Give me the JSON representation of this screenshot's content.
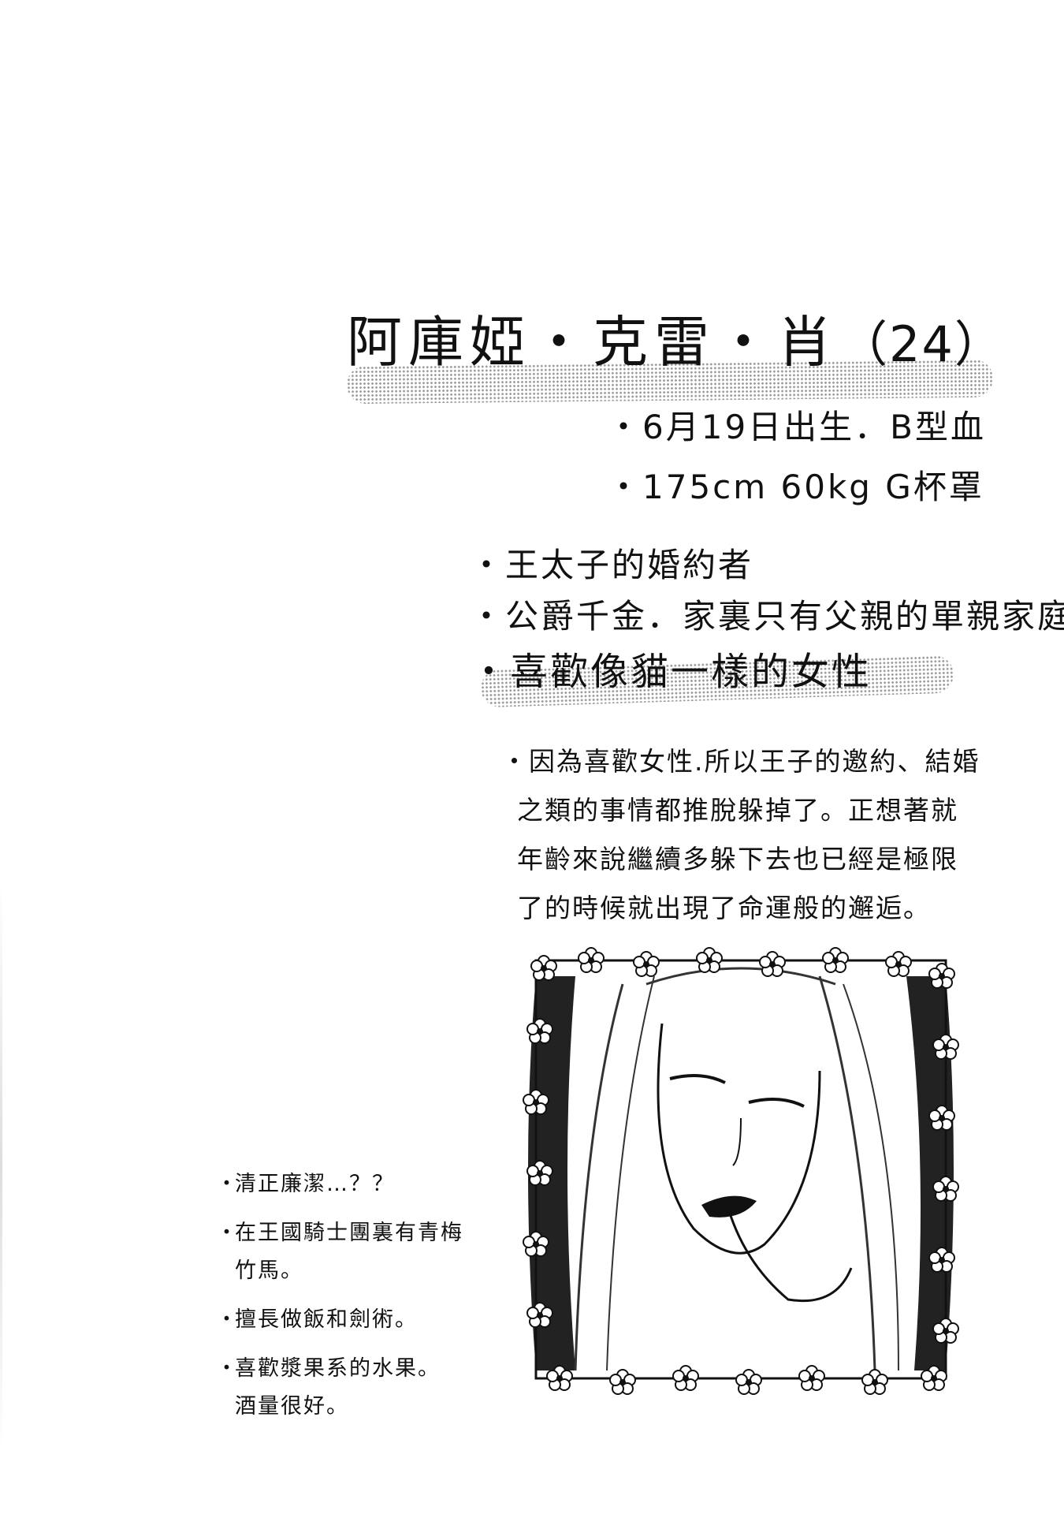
{
  "profile": {
    "name": "阿庫婭・克雷・肖",
    "age": "（24）",
    "stats": [
      "・6月19日出生．B型血",
      "・175cm 60kg G杯罩"
    ],
    "facts": [
      "・王太子的婚約者",
      "・公爵千金．家裏只有父親的單親家庭"
    ],
    "highlight": "・喜歡像貓一樣的女性",
    "paragraph": [
      "・因為喜歡女性.所以王子的邀約、結婚",
      "之類的事情都推脫躲掉了。正想著就",
      "年齡來說繼續多躲下去也已經是極限",
      "了的時候就出現了命運般的邂逅。"
    ],
    "notes": [
      {
        "bullet": "・",
        "lines": [
          "清正廉潔…？？"
        ]
      },
      {
        "bullet": "・",
        "lines": [
          "在王國騎士團裏有青梅",
          "竹馬。"
        ]
      },
      {
        "bullet": "・",
        "lines": [
          "擅長做飯和劍術。"
        ]
      },
      {
        "bullet": "・",
        "lines": [
          "喜歡漿果系的水果。",
          "酒量很好。"
        ]
      }
    ]
  },
  "illustration": {
    "icon": "portrait-illustration",
    "frame_icon": "flower-frame"
  },
  "colors": {
    "ink": "#111111",
    "screentone": "#9a9a9a",
    "paper": "#ffffff"
  }
}
